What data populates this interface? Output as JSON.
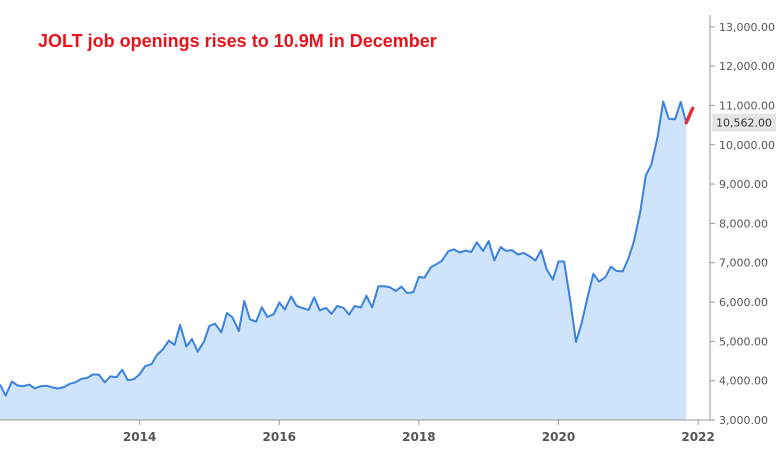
{
  "chart_data": {
    "type": "area",
    "title": "JOLT job openings rises to 10.9M in December",
    "xlabel": "",
    "ylabel": "",
    "xlim": [
      2012.0,
      2022.17
    ],
    "ylim": [
      3000,
      13300
    ],
    "x_ticks": [
      {
        "value": 2014,
        "label": "2014"
      },
      {
        "value": 2016,
        "label": "2016"
      },
      {
        "value": 2018,
        "label": "2018"
      },
      {
        "value": 2020,
        "label": "2020"
      },
      {
        "value": 2022,
        "label": "2022"
      }
    ],
    "y_ticks": [
      {
        "value": 3000,
        "label": "3,000.00"
      },
      {
        "value": 4000,
        "label": "4,000.00"
      },
      {
        "value": 5000,
        "label": "5,000.00"
      },
      {
        "value": 6000,
        "label": "6,000.00"
      },
      {
        "value": 7000,
        "label": "7,000.00"
      },
      {
        "value": 8000,
        "label": "8,000.00"
      },
      {
        "value": 9000,
        "label": "9,000.00"
      },
      {
        "value": 10000,
        "label": "10,000.00"
      },
      {
        "value": 11000,
        "label": "11,000.00"
      },
      {
        "value": 12000,
        "label": "12,000.00"
      },
      {
        "value": 13000,
        "label": "13,000.00"
      }
    ],
    "last_value_label": {
      "value": 10562,
      "label": "10,562.00"
    },
    "grid": false,
    "colors": {
      "line": "#3b82e0",
      "fill": "#cfe4fa",
      "highlight": "#e0303a",
      "title": "#e8131b",
      "label_bg": "#e6e6e6"
    },
    "series": [
      {
        "values": [
          [
            2012.0,
            3900
          ],
          [
            2012.08,
            3620
          ],
          [
            2012.17,
            3980
          ],
          [
            2012.25,
            3880
          ],
          [
            2012.33,
            3860
          ],
          [
            2012.42,
            3900
          ],
          [
            2012.5,
            3800
          ],
          [
            2012.58,
            3860
          ],
          [
            2012.67,
            3870
          ],
          [
            2012.75,
            3830
          ],
          [
            2012.83,
            3800
          ],
          [
            2012.92,
            3840
          ],
          [
            2013.0,
            3920
          ],
          [
            2013.08,
            3960
          ],
          [
            2013.17,
            4050
          ],
          [
            2013.25,
            4070
          ],
          [
            2013.33,
            4160
          ],
          [
            2013.42,
            4150
          ],
          [
            2013.5,
            3960
          ],
          [
            2013.58,
            4110
          ],
          [
            2013.67,
            4090
          ],
          [
            2013.75,
            4280
          ],
          [
            2013.83,
            4010
          ],
          [
            2013.92,
            4040
          ],
          [
            2014.0,
            4160
          ],
          [
            2014.08,
            4370
          ],
          [
            2014.17,
            4420
          ],
          [
            2014.25,
            4660
          ],
          [
            2014.33,
            4790
          ],
          [
            2014.42,
            5020
          ],
          [
            2014.5,
            4910
          ],
          [
            2014.58,
            5420
          ],
          [
            2014.67,
            4870
          ],
          [
            2014.75,
            5060
          ],
          [
            2014.83,
            4740
          ],
          [
            2014.92,
            4990
          ],
          [
            2015.0,
            5390
          ],
          [
            2015.08,
            5450
          ],
          [
            2015.17,
            5230
          ],
          [
            2015.25,
            5720
          ],
          [
            2015.33,
            5610
          ],
          [
            2015.42,
            5260
          ],
          [
            2015.5,
            6030
          ],
          [
            2015.58,
            5560
          ],
          [
            2015.67,
            5500
          ],
          [
            2015.75,
            5870
          ],
          [
            2015.83,
            5620
          ],
          [
            2015.92,
            5690
          ],
          [
            2016.0,
            5990
          ],
          [
            2016.08,
            5810
          ],
          [
            2016.17,
            6140
          ],
          [
            2016.25,
            5900
          ],
          [
            2016.33,
            5850
          ],
          [
            2016.42,
            5800
          ],
          [
            2016.5,
            6120
          ],
          [
            2016.58,
            5790
          ],
          [
            2016.67,
            5850
          ],
          [
            2016.75,
            5700
          ],
          [
            2016.83,
            5900
          ],
          [
            2016.92,
            5850
          ],
          [
            2017.0,
            5680
          ],
          [
            2017.08,
            5900
          ],
          [
            2017.17,
            5860
          ],
          [
            2017.25,
            6160
          ],
          [
            2017.33,
            5860
          ],
          [
            2017.42,
            6400
          ],
          [
            2017.5,
            6400
          ],
          [
            2017.58,
            6380
          ],
          [
            2017.67,
            6280
          ],
          [
            2017.75,
            6390
          ],
          [
            2017.83,
            6230
          ],
          [
            2017.92,
            6250
          ],
          [
            2018.0,
            6640
          ],
          [
            2018.08,
            6620
          ],
          [
            2018.17,
            6880
          ],
          [
            2018.25,
            6960
          ],
          [
            2018.33,
            7050
          ],
          [
            2018.42,
            7290
          ],
          [
            2018.5,
            7340
          ],
          [
            2018.58,
            7260
          ],
          [
            2018.67,
            7310
          ],
          [
            2018.75,
            7270
          ],
          [
            2018.83,
            7520
          ],
          [
            2018.92,
            7300
          ],
          [
            2019.0,
            7550
          ],
          [
            2019.08,
            7060
          ],
          [
            2019.17,
            7400
          ],
          [
            2019.25,
            7300
          ],
          [
            2019.33,
            7320
          ],
          [
            2019.42,
            7210
          ],
          [
            2019.5,
            7250
          ],
          [
            2019.58,
            7170
          ],
          [
            2019.67,
            7060
          ],
          [
            2019.75,
            7320
          ],
          [
            2019.83,
            6830
          ],
          [
            2019.92,
            6570
          ],
          [
            2020.0,
            7030
          ],
          [
            2020.08,
            7030
          ],
          [
            2020.17,
            6010
          ],
          [
            2020.25,
            4990
          ],
          [
            2020.33,
            5450
          ],
          [
            2020.42,
            6150
          ],
          [
            2020.5,
            6720
          ],
          [
            2020.58,
            6520
          ],
          [
            2020.67,
            6630
          ],
          [
            2020.75,
            6900
          ],
          [
            2020.83,
            6790
          ],
          [
            2020.92,
            6780
          ],
          [
            2021.0,
            7100
          ],
          [
            2021.08,
            7540
          ],
          [
            2021.17,
            8290
          ],
          [
            2021.25,
            9220
          ],
          [
            2021.33,
            9500
          ],
          [
            2021.42,
            10200
          ],
          [
            2021.5,
            11100
          ],
          [
            2021.58,
            10660
          ],
          [
            2021.67,
            10650
          ],
          [
            2021.75,
            11090
          ],
          [
            2021.83,
            10562
          ]
        ]
      }
    ],
    "highlight_segment": [
      [
        2021.83,
        10562
      ],
      [
        2021.92,
        10925
      ]
    ]
  }
}
